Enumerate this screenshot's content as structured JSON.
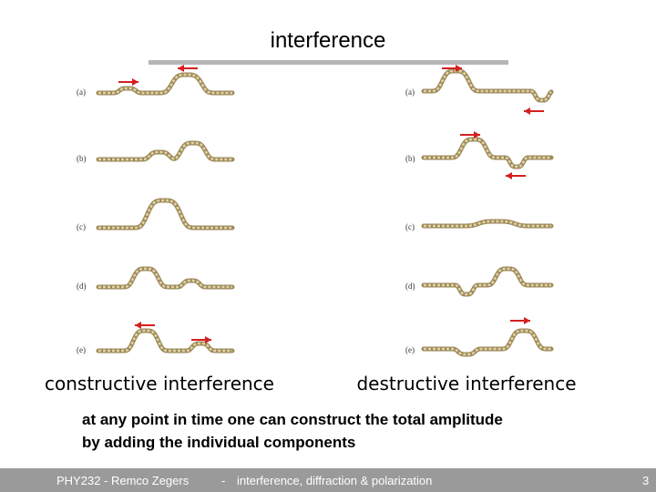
{
  "header": {
    "title": "interference"
  },
  "left_panel": {
    "labels": [
      "(a)",
      "(b)",
      "(c)",
      "(d)",
      "(e)"
    ],
    "caption": "constructive interference"
  },
  "right_panel": {
    "labels": [
      "(a)",
      "(b)",
      "(c)",
      "(d)",
      "(e)"
    ],
    "caption": "destructive interference"
  },
  "body": {
    "lines": [
      "at any point in time one can construct the total amplitude",
      "by adding the individual components"
    ]
  },
  "footer": {
    "author": "PHY232 - Remco Zegers",
    "separator": "-",
    "topic": "interference, diffraction & polarization",
    "page": "3"
  }
}
